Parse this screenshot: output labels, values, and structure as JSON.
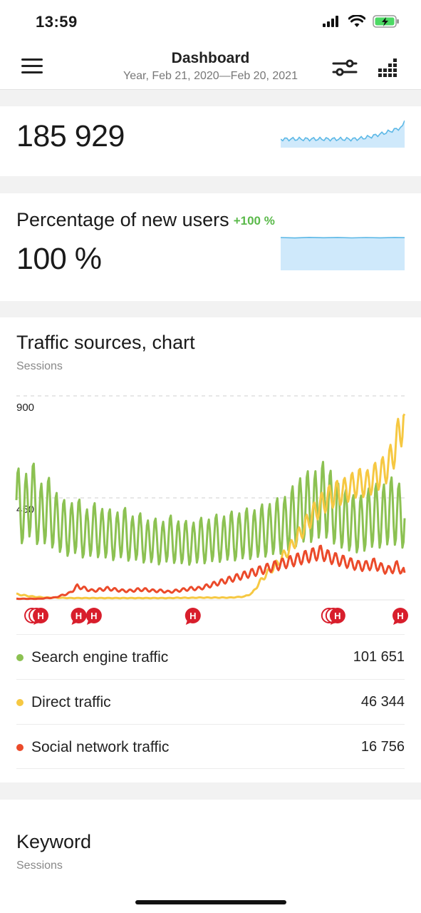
{
  "status": {
    "time": "13:59"
  },
  "header": {
    "title": "Dashboard",
    "subtitle": "Year, Feb 21, 2020—Feb 20, 2021",
    "icons": [
      "menu-icon",
      "filter-icon",
      "grid-icon"
    ]
  },
  "visits_card": {
    "value": "185 929"
  },
  "new_users_card": {
    "title": "Percentage of new users",
    "delta": "+100 %",
    "value": "100 %"
  },
  "traffic_card": {
    "title": "Traffic sources, chart",
    "subtitle": "Sessions",
    "legend": [
      {
        "label": "Search engine traffic",
        "value": "101 651",
        "color": "#8cc152"
      },
      {
        "label": "Direct traffic",
        "value": "46 344",
        "color": "#f6c842"
      },
      {
        "label": "Social network traffic",
        "value": "16 756",
        "color": "#eb4a2a"
      }
    ],
    "marker_letter": "H"
  },
  "keyword_card": {
    "title": "Keyword",
    "subtitle": "Sessions"
  },
  "colors": {
    "accent_blue": "#5cb8e6",
    "spark_fill": "#cfe9fb",
    "search": "#8cc152",
    "direct": "#f6c842",
    "social": "#eb4a2a",
    "marker": "#d81e2c"
  },
  "chart_data": {
    "type": "line",
    "ylabel": "",
    "xlabel": "",
    "ylim": [
      0,
      900
    ],
    "yticks": [
      "900",
      "450"
    ],
    "period": "Feb 21, 2020 — Feb 20, 2021",
    "points_per_series": 52,
    "series": [
      {
        "name": "Search engine traffic",
        "color": "#8cc152",
        "values": [
          440,
          380,
          470,
          360,
          410,
          350,
          330,
          300,
          340,
          280,
          320,
          290,
          300,
          270,
          310,
          260,
          290,
          250,
          270,
          240,
          280,
          250,
          260,
          240,
          270,
          250,
          280,
          260,
          290,
          270,
          300,
          280,
          310,
          300,
          330,
          320,
          360,
          380,
          420,
          400,
          450,
          430,
          380,
          360,
          340,
          330,
          350,
          380,
          360,
          400,
          380,
          360
        ]
      },
      {
        "name": "Direct traffic",
        "color": "#f6c842",
        "values": [
          25,
          20,
          15,
          12,
          10,
          10,
          9,
          8,
          8,
          8,
          8,
          8,
          8,
          8,
          8,
          8,
          8,
          8,
          8,
          8,
          8,
          9,
          9,
          9,
          10,
          10,
          10,
          10,
          10,
          12,
          15,
          30,
          80,
          120,
          150,
          190,
          230,
          280,
          330,
          380,
          420,
          450,
          470,
          480,
          500,
          520,
          510,
          540,
          560,
          600,
          700,
          820
        ]
      },
      {
        "name": "Social network traffic",
        "color": "#eb4a2a",
        "values": [
          5,
          5,
          5,
          5,
          8,
          10,
          20,
          30,
          60,
          50,
          40,
          45,
          50,
          45,
          40,
          40,
          45,
          45,
          40,
          40,
          35,
          40,
          45,
          50,
          50,
          60,
          70,
          80,
          90,
          100,
          110,
          120,
          130,
          140,
          150,
          160,
          170,
          180,
          190,
          200,
          210,
          190,
          180,
          170,
          160,
          150,
          150,
          160,
          140,
          130,
          150,
          120
        ]
      }
    ],
    "annotations": [
      {
        "x_index": 3,
        "label": "H",
        "stack": 3
      },
      {
        "x_index": 8,
        "label": "H",
        "stack": 1
      },
      {
        "x_index": 10,
        "label": "H",
        "stack": 1
      },
      {
        "x_index": 23,
        "label": "H",
        "stack": 1
      },
      {
        "x_index": 42,
        "label": "H",
        "stack": 3
      },
      {
        "x_index": 51,
        "label": "H",
        "stack": 1
      }
    ],
    "grid": true,
    "legend": "below"
  }
}
